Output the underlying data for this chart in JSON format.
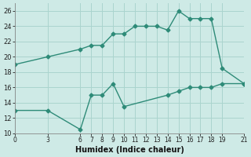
{
  "upper_x": [
    0,
    3,
    6,
    7,
    8,
    9,
    10,
    11,
    12,
    13,
    14,
    15,
    16,
    17,
    18,
    19,
    21
  ],
  "upper_y": [
    19,
    20,
    21,
    21.5,
    21.5,
    23,
    23,
    24,
    24,
    24,
    23.5,
    26,
    25,
    25,
    25,
    18.5,
    16.5
  ],
  "lower_x": [
    0,
    3,
    6,
    7,
    8,
    9,
    10,
    14,
    15,
    16,
    17,
    18,
    19,
    21
  ],
  "lower_y": [
    13,
    13,
    10.5,
    15,
    15,
    16.5,
    13.5,
    15,
    15.5,
    16,
    16,
    16,
    16.5,
    16.5
  ],
  "color": "#2e8b78",
  "bg_color": "#ceeae6",
  "grid_color": "#aad4ce",
  "xlabel": "Humidex (Indice chaleur)",
  "xlim": [
    0,
    21
  ],
  "ylim": [
    10,
    27
  ],
  "xticks": [
    0,
    3,
    6,
    7,
    8,
    9,
    10,
    11,
    12,
    13,
    14,
    15,
    16,
    17,
    18,
    19,
    21
  ],
  "yticks": [
    10,
    12,
    14,
    16,
    18,
    20,
    22,
    24,
    26
  ],
  "marker": "D",
  "markersize": 2.5,
  "linewidth": 1.0
}
